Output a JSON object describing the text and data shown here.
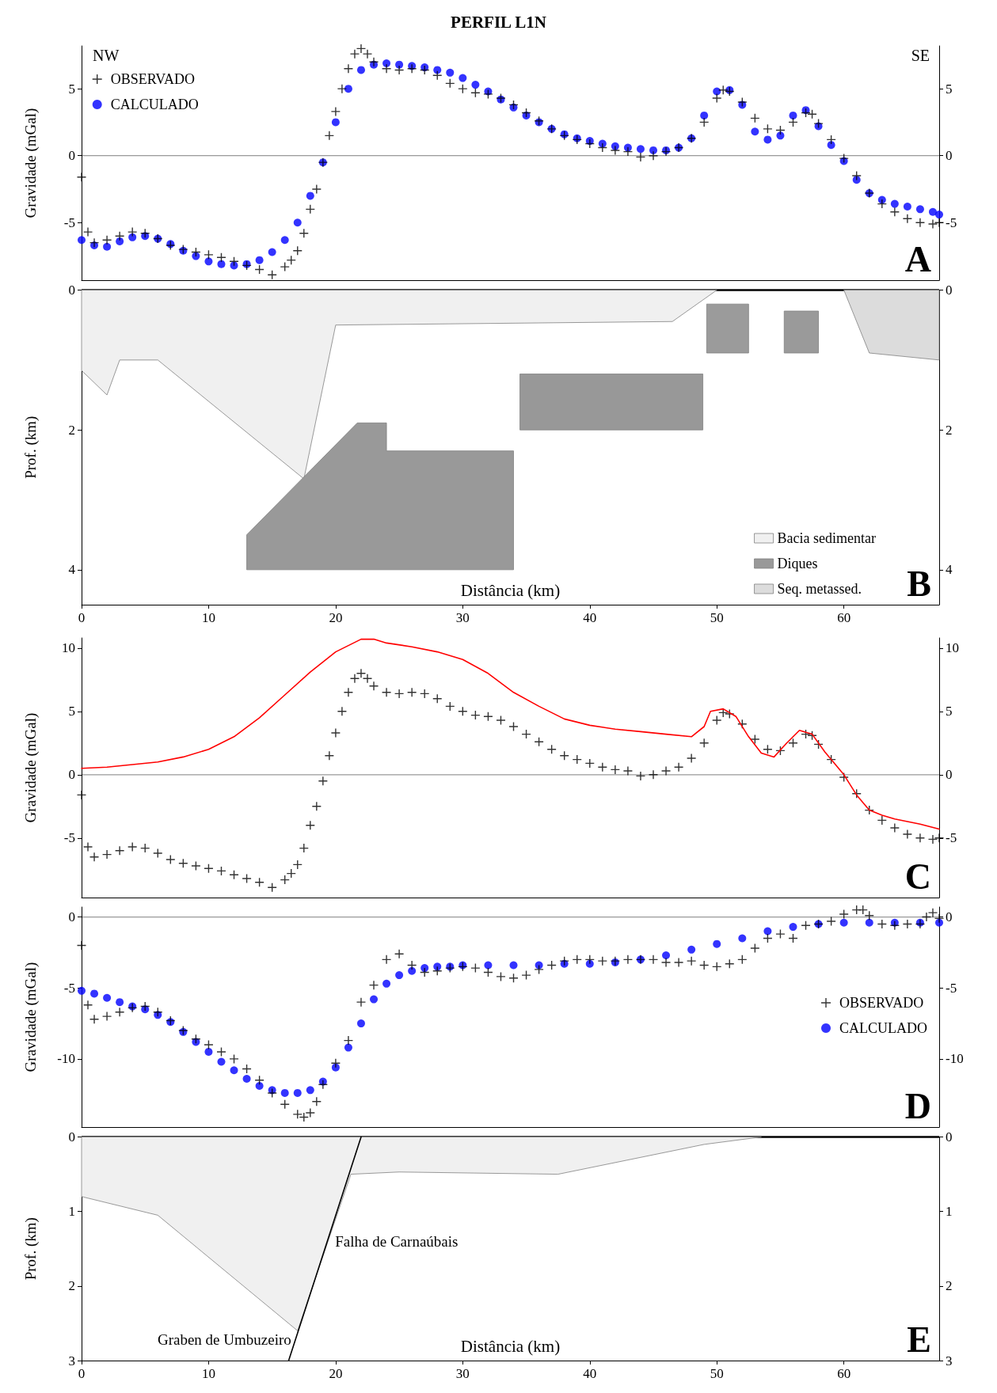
{
  "chart_data": [
    {
      "type": "scatter",
      "title": "PERFIL L1N",
      "ylabel": "Gravidade (mGal)",
      "xlim": [
        0,
        67.5
      ],
      "ylim": [
        -9.3,
        8.2
      ],
      "yticks": [
        -5,
        0,
        5
      ],
      "y2lim": [
        -9.3,
        8.2
      ],
      "y2ticks": [
        -5,
        0,
        5
      ],
      "tick_labels": "y",
      "legend": "top left",
      "annotations": [
        "NW",
        "SE",
        "A"
      ],
      "ref_lines": [
        {
          "axis": "y",
          "value": 0,
          "color": "#999999"
        }
      ],
      "series": [
        {
          "name": "OBSERVADO",
          "color": "#000000",
          "marker": "cross",
          "x": [
            0,
            0.5,
            1,
            2,
            3,
            4,
            5,
            6,
            7,
            8,
            9,
            10,
            11,
            12,
            13,
            14,
            15,
            16,
            16.5,
            17,
            17.5,
            18,
            18.5,
            19,
            19.5,
            20,
            20.5,
            21,
            21.5,
            22,
            22.5,
            23,
            24,
            25,
            26,
            27,
            28,
            29,
            30,
            31,
            32,
            33,
            34,
            35,
            36,
            37,
            38,
            39,
            40,
            41,
            42,
            43,
            44,
            45,
            46,
            47,
            48,
            49,
            50,
            50.5,
            51,
            52,
            53,
            54,
            55,
            56,
            57,
            57.5,
            58,
            59,
            60,
            61,
            62,
            63,
            64,
            65,
            66,
            67,
            67.5
          ],
          "values": [
            -1.6,
            -5.7,
            -6.5,
            -6.3,
            -6.0,
            -5.7,
            -5.8,
            -6.2,
            -6.7,
            -7.0,
            -7.2,
            -7.4,
            -7.6,
            -7.9,
            -8.2,
            -8.5,
            -8.9,
            -8.3,
            -7.8,
            -7.1,
            -5.8,
            -4.0,
            -2.5,
            -0.5,
            1.5,
            3.3,
            5.0,
            6.5,
            7.6,
            8.0,
            7.6,
            7.0,
            6.5,
            6.4,
            6.5,
            6.4,
            6.0,
            5.4,
            5.0,
            4.7,
            4.6,
            4.3,
            3.8,
            3.2,
            2.6,
            2.0,
            1.5,
            1.2,
            0.9,
            0.6,
            0.4,
            0.3,
            -0.1,
            0.0,
            0.3,
            0.6,
            1.3,
            2.5,
            4.3,
            4.9,
            4.8,
            4.0,
            2.8,
            2.0,
            1.9,
            2.5,
            3.2,
            3.1,
            2.4,
            1.2,
            -0.2,
            -1.5,
            -2.8,
            -3.6,
            -4.2,
            -4.7,
            -5.0,
            -5.1,
            -5.0
          ]
        },
        {
          "name": "CALCULADO",
          "color": "#0000ff",
          "marker": "circle",
          "x": [
            0,
            1,
            2,
            3,
            4,
            5,
            6,
            7,
            8,
            9,
            10,
            11,
            12,
            13,
            14,
            15,
            16,
            17,
            18,
            19,
            20,
            21,
            22,
            23,
            24,
            25,
            26,
            27,
            28,
            29,
            30,
            31,
            32,
            33,
            34,
            35,
            36,
            37,
            38,
            39,
            40,
            41,
            42,
            43,
            44,
            45,
            46,
            47,
            48,
            49,
            50,
            51,
            52,
            53,
            54,
            55,
            56,
            57,
            58,
            59,
            60,
            61,
            62,
            63,
            64,
            65,
            66,
            67,
            67.5
          ],
          "values": [
            -6.3,
            -6.7,
            -6.8,
            -6.4,
            -6.1,
            -6.0,
            -6.2,
            -6.6,
            -7.1,
            -7.5,
            -7.9,
            -8.1,
            -8.2,
            -8.1,
            -7.8,
            -7.2,
            -6.3,
            -5.0,
            -3.0,
            -0.5,
            2.5,
            5.0,
            6.4,
            6.8,
            6.9,
            6.8,
            6.7,
            6.6,
            6.4,
            6.2,
            5.8,
            5.3,
            4.8,
            4.2,
            3.6,
            3.0,
            2.5,
            2.0,
            1.6,
            1.3,
            1.1,
            0.9,
            0.7,
            0.6,
            0.5,
            0.4,
            0.4,
            0.6,
            1.3,
            3.0,
            4.8,
            4.9,
            3.8,
            1.8,
            1.2,
            1.5,
            3.0,
            3.4,
            2.2,
            0.8,
            -0.4,
            -1.8,
            -2.8,
            -3.3,
            -3.6,
            -3.8,
            -4.0,
            -4.2,
            -4.4
          ]
        }
      ]
    },
    {
      "type": "area",
      "ylabel": "Prof. (km)",
      "xlabel": "Distância (km)",
      "xlim": [
        0,
        67.5
      ],
      "xticks": [
        0,
        10,
        20,
        30,
        40,
        50,
        60
      ],
      "ylim": [
        4.5,
        0
      ],
      "yticks": [
        0,
        2,
        4
      ],
      "y2lim": [
        4.5,
        0
      ],
      "y2ticks": [
        0,
        2,
        4
      ],
      "legend": "bottom right",
      "annotations": [
        "B"
      ],
      "ref_lines": [
        {
          "axis": "y",
          "value": 0,
          "color": "#000000"
        }
      ],
      "series": [
        {
          "name": "Bacia sedimentar",
          "color": "#f0f0f0",
          "x": [
            0,
            2,
            3,
            6,
            17.5,
            20,
            46.5,
            50
          ],
          "values": [
            1.15,
            1.5,
            1.0,
            1.0,
            2.7,
            0.5,
            0.45,
            0
          ]
        },
        {
          "name": "Diques",
          "color": "#999999",
          "x": [
            13,
            21.7,
            24,
            24,
            34,
            34,
            13,
            13
          ],
          "values": [
            3.5,
            1.9,
            1.9,
            2.3,
            2.3,
            4,
            4,
            3.5
          ]
        },
        {
          "name": "Seq. metassed.",
          "color": "#dcdcdc",
          "x": [
            60,
            62,
            67.5
          ],
          "values": [
            0,
            0.9,
            1.0
          ]
        },
        {
          "color": "#989898",
          "x": [
            34.5,
            48.9,
            48.9,
            34.5,
            34.5
          ],
          "values": [
            1.2,
            1.2,
            2.0,
            2.0,
            1.2
          ]
        },
        {
          "color": "#9a9a9a",
          "x": [
            55.3,
            58,
            58,
            55.3,
            55.3
          ],
          "values": [
            0.3,
            0.3,
            0.9,
            0.9,
            0.3
          ]
        },
        {
          "color": "#9b9b9b",
          "x": [
            49.2,
            52.5,
            52.5,
            49.2,
            49.2
          ],
          "values": [
            0.2,
            0.2,
            0.9,
            0.9,
            0.2
          ]
        }
      ]
    },
    {
      "type": "scatter",
      "ylabel": "Gravidade (mGal)",
      "xlim": [
        0,
        67.5
      ],
      "ylim": [
        -9.7,
        10.8
      ],
      "yticks": [
        -5,
        0,
        5,
        10
      ],
      "y2lim": [
        -9.7,
        10.8
      ],
      "y2ticks": [
        -5,
        0,
        5,
        10
      ],
      "tick_labels": "y",
      "annotations": [
        "C"
      ],
      "ref_lines": [
        {
          "axis": "y",
          "value": 0,
          "color": "#999999"
        }
      ],
      "series": [
        {
          "color": "#000000",
          "marker": "cross",
          "x": [
            0,
            0.5,
            1,
            2,
            3,
            4,
            5,
            6,
            7,
            8,
            9,
            10,
            11,
            12,
            13,
            14,
            15,
            16,
            16.5,
            17,
            17.5,
            18,
            18.5,
            19,
            19.5,
            20,
            20.5,
            21,
            21.5,
            22,
            22.5,
            23,
            24,
            25,
            26,
            27,
            28,
            29,
            30,
            31,
            32,
            33,
            34,
            35,
            36,
            37,
            38,
            39,
            40,
            41,
            42,
            43,
            44,
            45,
            46,
            47,
            48,
            49,
            50,
            50.5,
            51,
            52,
            53,
            54,
            55,
            56,
            57,
            57.5,
            58,
            59,
            60,
            61,
            62,
            63,
            64,
            65,
            66,
            67,
            67.5
          ],
          "values": [
            -1.6,
            -5.7,
            -6.5,
            -6.3,
            -6.0,
            -5.7,
            -5.8,
            -6.2,
            -6.7,
            -7.0,
            -7.2,
            -7.4,
            -7.6,
            -7.9,
            -8.2,
            -8.5,
            -8.9,
            -8.3,
            -7.8,
            -7.1,
            -5.8,
            -4.0,
            -2.5,
            -0.5,
            1.5,
            3.3,
            5.0,
            6.5,
            7.6,
            8.0,
            7.6,
            7.0,
            6.5,
            6.4,
            6.5,
            6.4,
            6.0,
            5.4,
            5.0,
            4.7,
            4.6,
            4.3,
            3.8,
            3.2,
            2.6,
            2.0,
            1.5,
            1.2,
            0.9,
            0.6,
            0.4,
            0.3,
            -0.1,
            0.0,
            0.3,
            0.6,
            1.3,
            2.5,
            4.3,
            4.9,
            4.8,
            4.0,
            2.8,
            2.0,
            1.9,
            2.5,
            3.2,
            3.1,
            2.4,
            1.2,
            -0.2,
            -1.5,
            -2.8,
            -3.6,
            -4.2,
            -4.7,
            -5.0,
            -5.1,
            -5.0
          ]
        },
        {
          "type": "line",
          "color": "#ff0000",
          "x": [
            0,
            2,
            4,
            6,
            8,
            10,
            12,
            14,
            16,
            18,
            20,
            22,
            23,
            24,
            26,
            28,
            30,
            32,
            34,
            36,
            38,
            40,
            42,
            44,
            46,
            48,
            49,
            49.5,
            50.5,
            51.5,
            52.5,
            53.5,
            54.5,
            55.5,
            56.5,
            57.5,
            58.5,
            60,
            61,
            62,
            63,
            64,
            65,
            66,
            67.5
          ],
          "values": [
            0.5,
            0.6,
            0.8,
            1.0,
            1.4,
            2.0,
            3.0,
            4.5,
            6.3,
            8.1,
            9.7,
            10.7,
            10.7,
            10.4,
            10.1,
            9.7,
            9.1,
            8.0,
            6.5,
            5.4,
            4.4,
            3.9,
            3.6,
            3.4,
            3.2,
            3.0,
            3.8,
            5.0,
            5.2,
            4.6,
            3.0,
            1.7,
            1.4,
            2.5,
            3.5,
            3.2,
            1.8,
            0.0,
            -1.6,
            -2.8,
            -3.2,
            -3.5,
            -3.7,
            -3.9,
            -4.3
          ]
        }
      ]
    },
    {
      "type": "scatter",
      "ylabel": "Gravidade (mGal)",
      "xlim": [
        0,
        67.5
      ],
      "ylim": [
        -14.8,
        0.7
      ],
      "yticks": [
        -10,
        -5,
        0
      ],
      "y2lim": [
        -14.8,
        0.7
      ],
      "y2ticks": [
        -10,
        -5,
        0
      ],
      "tick_labels": "y",
      "legend": "right",
      "annotations": [
        "D"
      ],
      "ref_lines": [
        {
          "axis": "y",
          "value": 0,
          "color": "#999999"
        }
      ],
      "series": [
        {
          "name": "OBSERVADO",
          "color": "#000000",
          "marker": "cross",
          "x": [
            0,
            0.5,
            1,
            2,
            3,
            4,
            5,
            6,
            7,
            8,
            9,
            10,
            11,
            12,
            13,
            14,
            15,
            16,
            17,
            17.5,
            18,
            18.5,
            19,
            20,
            21,
            22,
            23,
            24,
            25,
            26,
            27,
            28,
            29,
            30,
            31,
            32,
            33,
            34,
            35,
            36,
            37,
            38,
            39,
            40,
            41,
            42,
            43,
            44,
            45,
            46,
            47,
            48,
            49,
            50,
            51,
            52,
            53,
            54,
            55,
            56,
            57,
            58,
            59,
            60,
            61,
            61.5,
            62,
            63,
            64,
            65,
            66,
            66.5,
            67,
            67.5
          ],
          "values": [
            -2.0,
            -6.2,
            -7.2,
            -7.0,
            -6.7,
            -6.4,
            -6.3,
            -6.7,
            -7.3,
            -8.0,
            -8.6,
            -9.0,
            -9.5,
            -10.0,
            -10.7,
            -11.5,
            -12.4,
            -13.2,
            -13.9,
            -14.1,
            -13.8,
            -13.0,
            -11.8,
            -10.3,
            -8.7,
            -6.0,
            -4.8,
            -3.0,
            -2.6,
            -3.4,
            -3.9,
            -3.8,
            -3.6,
            -3.5,
            -3.6,
            -3.9,
            -4.2,
            -4.3,
            -4.1,
            -3.7,
            -3.4,
            -3.1,
            -3.0,
            -3.0,
            -3.1,
            -3.1,
            -3.0,
            -3.0,
            -3.0,
            -3.2,
            -3.2,
            -3.1,
            -3.4,
            -3.5,
            -3.3,
            -3.0,
            -2.2,
            -1.5,
            -1.2,
            -1.5,
            -0.6,
            -0.5,
            -0.3,
            0.2,
            0.5,
            0.5,
            0.1,
            -0.5,
            -0.6,
            -0.5,
            -0.5,
            0.0,
            0.3,
            -0.1
          ]
        },
        {
          "name": "CALCULADO",
          "color": "#0000ff",
          "marker": "circle",
          "x": [
            0,
            1,
            2,
            3,
            4,
            5,
            6,
            7,
            8,
            9,
            10,
            11,
            12,
            13,
            14,
            15,
            16,
            17,
            18,
            19,
            20,
            21,
            22,
            23,
            24,
            25,
            26,
            27,
            28,
            29,
            30,
            32,
            34,
            36,
            38,
            40,
            42,
            44,
            46,
            48,
            50,
            52,
            54,
            56,
            58,
            60,
            62,
            64,
            66,
            67.5
          ],
          "values": [
            -5.2,
            -5.4,
            -5.7,
            -6.0,
            -6.3,
            -6.5,
            -6.9,
            -7.4,
            -8.1,
            -8.8,
            -9.5,
            -10.2,
            -10.8,
            -11.4,
            -11.9,
            -12.2,
            -12.4,
            -12.4,
            -12.2,
            -11.6,
            -10.6,
            -9.2,
            -7.5,
            -5.8,
            -4.7,
            -4.1,
            -3.8,
            -3.6,
            -3.5,
            -3.5,
            -3.4,
            -3.4,
            -3.4,
            -3.4,
            -3.3,
            -3.3,
            -3.2,
            -3.0,
            -2.7,
            -2.3,
            -1.9,
            -1.5,
            -1.0,
            -0.7,
            -0.5,
            -0.4,
            -0.4,
            -0.4,
            -0.4,
            -0.4
          ]
        }
      ]
    },
    {
      "type": "area",
      "ylabel": "Prof. (km)",
      "xlabel": "Distância (km)",
      "xlim": [
        0,
        67.5
      ],
      "xticks": [
        0,
        10,
        20,
        30,
        40,
        50,
        60
      ],
      "ylim": [
        3,
        0
      ],
      "yticks": [
        0,
        1,
        2,
        3
      ],
      "y2lim": [
        3,
        0
      ],
      "y2ticks": [
        0,
        1,
        2,
        3
      ],
      "annotations": [
        "E",
        {
          "text": "Falha de Carnaúbais",
          "x": 19.34,
          "y": 1.4
        },
        {
          "text": "Graben de Umbuzeiro",
          "x": 17,
          "y": 2.6
        }
      ],
      "ref_lines": [
        {
          "axis": "y",
          "value": 0,
          "color": "#000000"
        }
      ],
      "series": [
        {
          "color": "#f0f0f0",
          "x": [
            0,
            6,
            17,
            21.2,
            25,
            37.5,
            49,
            53.5
          ],
          "values": [
            0.8,
            1.05,
            2.6,
            0.5,
            0.47,
            0.5,
            0.1,
            0
          ]
        },
        {
          "type": "line",
          "color": "#000000",
          "x": [
            16.3,
            22
          ],
          "values": [
            3.0,
            0
          ]
        }
      ]
    }
  ]
}
